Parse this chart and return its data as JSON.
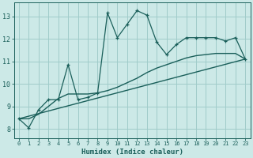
{
  "xlabel": "Humidex (Indice chaleur)",
  "xlim": [
    -0.5,
    23.5
  ],
  "ylim": [
    7.6,
    13.6
  ],
  "xticks": [
    0,
    1,
    2,
    3,
    4,
    5,
    6,
    7,
    8,
    9,
    10,
    11,
    12,
    13,
    14,
    15,
    16,
    17,
    18,
    19,
    20,
    21,
    22,
    23
  ],
  "yticks": [
    8,
    9,
    10,
    11,
    12,
    13
  ],
  "bg_color": "#cce9e7",
  "grid_color": "#a0ccca",
  "line_color": "#1a5f5a",
  "jagged_x": [
    0,
    1,
    2,
    3,
    4,
    5,
    6,
    7,
    8,
    9,
    10,
    11,
    12,
    13,
    14,
    15,
    16,
    17,
    18,
    19,
    20,
    21,
    22,
    23
  ],
  "jagged_y": [
    8.45,
    8.05,
    8.85,
    9.3,
    9.3,
    10.85,
    9.3,
    9.4,
    9.6,
    13.15,
    12.05,
    12.65,
    13.25,
    13.05,
    11.85,
    11.3,
    11.75,
    12.05,
    12.05,
    12.05,
    12.05,
    11.9,
    12.05,
    11.1
  ],
  "smooth_x": [
    0,
    1,
    2,
    3,
    4,
    5,
    6,
    7,
    8,
    9,
    10,
    11,
    12,
    13,
    14,
    15,
    16,
    17,
    18,
    19,
    20,
    21,
    22,
    23
  ],
  "smooth_y": [
    8.45,
    8.45,
    8.65,
    9.0,
    9.35,
    9.55,
    9.55,
    9.55,
    9.6,
    9.7,
    9.85,
    10.05,
    10.25,
    10.5,
    10.7,
    10.85,
    11.0,
    11.15,
    11.25,
    11.3,
    11.35,
    11.35,
    11.35,
    11.1
  ],
  "trend_x": [
    0,
    23
  ],
  "trend_y": [
    8.45,
    11.1
  ]
}
